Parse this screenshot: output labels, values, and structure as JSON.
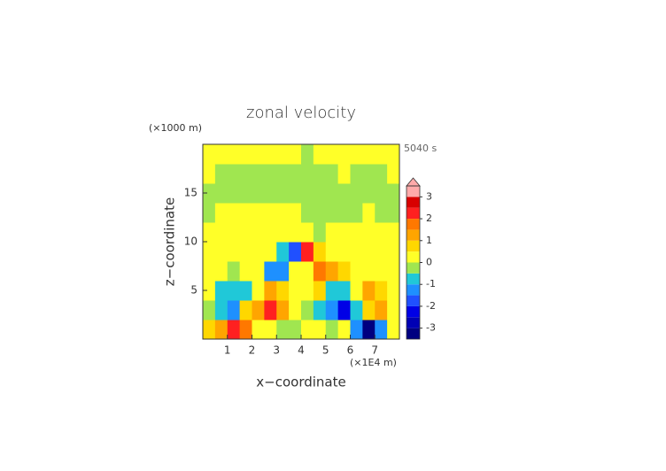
{
  "chart_data": {
    "type": "heatmap",
    "title": "zonal velocity",
    "time_label": "5040 s",
    "xlabel": "x−coordinate",
    "ylabel": "z−coordinate",
    "x_unit": "(×1E4 m)",
    "y_unit": "(×1000 m)",
    "xlim": [
      0,
      8
    ],
    "ylim": [
      0,
      20
    ],
    "xticks": [
      1,
      2,
      3,
      4,
      5,
      6,
      7
    ],
    "yticks": [
      5,
      10,
      15
    ],
    "x": [
      0.25,
      0.75,
      1.25,
      1.75,
      2.25,
      2.75,
      3.25,
      3.75,
      4.25,
      4.75,
      5.25,
      5.75,
      6.25,
      6.75,
      7.25,
      7.75
    ],
    "y": [
      1,
      3,
      5,
      7,
      9,
      11,
      13,
      15,
      17,
      19
    ],
    "z": [
      [
        0.6,
        1.2,
        2.4,
        1.5,
        0.3,
        0.4,
        -0.3,
        -0.2,
        0.2,
        0.3,
        -0.4,
        0.3,
        -1.2,
        -3.2,
        -1.5,
        0.2
      ],
      [
        -0.3,
        -0.8,
        -1.2,
        0.6,
        1.2,
        2.3,
        1.2,
        0.3,
        -0.3,
        -0.6,
        -1.2,
        -2.3,
        -1.0,
        0.8,
        1.2,
        0.3
      ],
      [
        0.2,
        -0.7,
        -1.0,
        -0.6,
        0.4,
        1.0,
        0.6,
        0.2,
        0.2,
        0.6,
        -0.8,
        -0.6,
        0.3,
        1.0,
        0.6,
        0.2
      ],
      [
        0.1,
        0.2,
        -0.2,
        0.2,
        0.3,
        -1.2,
        -1.3,
        0.3,
        0.4,
        1.5,
        1.1,
        0.5,
        0.3,
        0.2,
        0.1,
        0.1
      ],
      [
        0.1,
        0.1,
        0.2,
        0.2,
        0.2,
        0.3,
        -0.6,
        -1.8,
        2.0,
        0.9,
        0.4,
        0.2,
        0.2,
        0.2,
        0.1,
        0.1
      ],
      [
        0.1,
        0.1,
        0.1,
        0.2,
        0.2,
        0.2,
        0.2,
        0.3,
        0.3,
        -0.2,
        0.1,
        0.2,
        0.2,
        0.2,
        0.1,
        0.1
      ],
      [
        -0.2,
        0.1,
        0.1,
        0.1,
        0.1,
        0.1,
        0.1,
        0.1,
        -0.1,
        -0.2,
        -0.2,
        -0.2,
        -0.1,
        0.1,
        -0.2,
        -0.2
      ],
      [
        -0.2,
        -0.2,
        -0.2,
        -0.2,
        -0.2,
        -0.2,
        -0.1,
        -0.1,
        -0.2,
        -0.2,
        -0.2,
        -0.2,
        -0.2,
        -0.1,
        -0.2,
        -0.2
      ],
      [
        0.1,
        -0.2,
        -0.2,
        -0.1,
        -0.2,
        -0.2,
        -0.2,
        -0.2,
        -0.1,
        -0.2,
        -0.1,
        0.1,
        -0.2,
        -0.2,
        -0.1,
        0.1
      ],
      [
        0.1,
        0.1,
        0.1,
        0.1,
        0.1,
        0.1,
        0.1,
        0.1,
        -0.1,
        0.1,
        0.1,
        0.1,
        0.1,
        0.1,
        0.1,
        0.1
      ]
    ],
    "levels": [
      -3.5,
      -3,
      -2.5,
      -2,
      -1.5,
      -1,
      -0.5,
      0,
      0.5,
      1,
      1.5,
      2,
      2.5,
      3,
      3.5
    ],
    "colors": [
      "#000080",
      "#0000b4",
      "#0000e6",
      "#2050ff",
      "#1e90ff",
      "#20c8d8",
      "#a0e650",
      "#ffff28",
      "#ffd700",
      "#ffa500",
      "#ff7800",
      "#ff2020",
      "#d80000",
      "#ffaaaa"
    ],
    "cbar_ticks": [
      -3,
      -2,
      -1,
      0,
      1,
      2,
      3
    ]
  }
}
